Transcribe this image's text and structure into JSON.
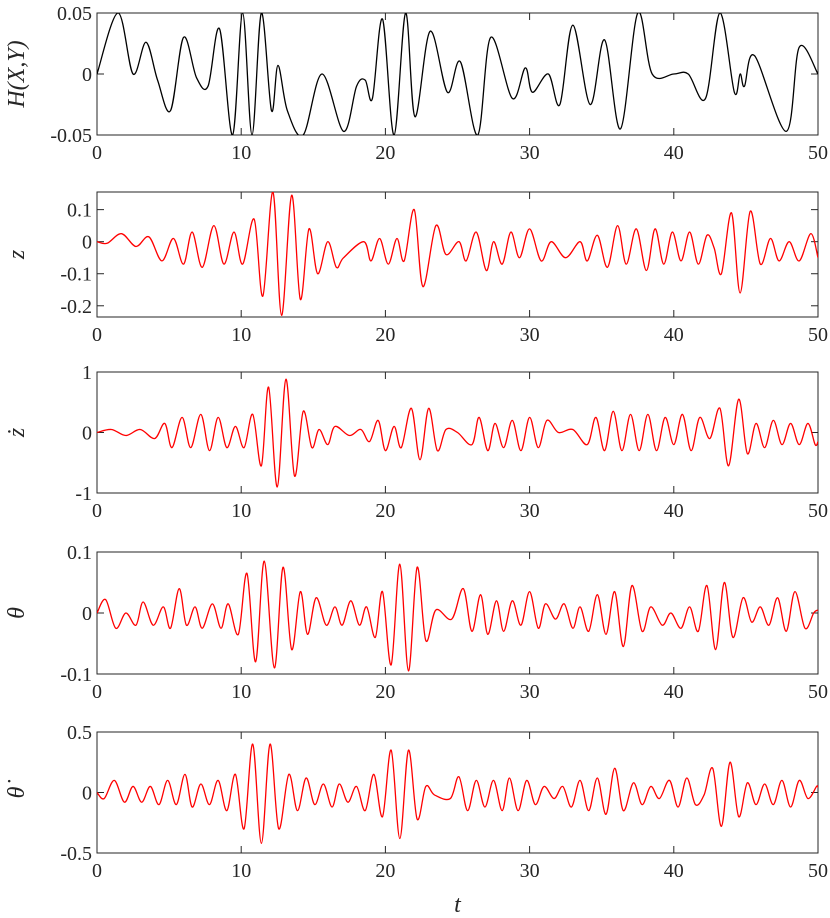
{
  "chart_data": [
    {
      "type": "line",
      "ylabel": "H(X,Y)",
      "color": "#000000",
      "xlim": [
        0,
        50
      ],
      "xticks": [
        0,
        10,
        20,
        30,
        40,
        50
      ],
      "ylim": [
        -0.05,
        0.05
      ],
      "yticks": [
        -0.05,
        0,
        0.05
      ],
      "x": [
        0,
        1.46,
        2.5,
        3.4,
        4.2,
        5.1,
        6.0,
        6.9,
        7.7,
        8.5,
        9.4,
        10.1,
        10.75,
        11.4,
        12.1,
        12.55,
        13.2,
        14.3,
        15.6,
        17.1,
        18.0,
        18.6,
        19.1,
        19.8,
        20.6,
        21.4,
        22.05,
        23.1,
        24.3,
        25.2,
        26.4,
        27.3,
        28.8,
        29.7,
        30.2,
        31.3,
        32.1,
        33.0,
        34.2,
        35.2,
        36.3,
        37.5,
        38.5,
        40.0,
        41.0,
        42.2,
        43.2,
        44.2,
        44.6,
        44.9,
        45.6,
        47.8,
        48.7,
        50
      ],
      "values": [
        0,
        0.05,
        0,
        0.026,
        -0.005,
        -0.03,
        0.03,
        -0.003,
        -0.01,
        0.037,
        -0.05,
        0.05,
        -0.05,
        0.05,
        -0.03,
        0.007,
        -0.03,
        -0.05,
        0,
        -0.047,
        -0.01,
        -0.005,
        -0.02,
        0.045,
        -0.05,
        0.05,
        -0.035,
        0.035,
        -0.015,
        0.01,
        -0.05,
        0.03,
        -0.02,
        0.005,
        -0.015,
        0,
        -0.025,
        0.04,
        -0.025,
        0.028,
        -0.045,
        0.05,
        0,
        0,
        0,
        -0.02,
        0.05,
        -0.015,
        0,
        -0.01,
        0.015,
        -0.047,
        0.022,
        0
      ]
    },
    {
      "type": "line",
      "ylabel": "z",
      "color": "#ff0000",
      "xlim": [
        0,
        50
      ],
      "xticks": [
        0,
        10,
        20,
        30,
        40,
        50
      ],
      "ylim": [
        -0.235,
        0.155
      ],
      "yticks": [
        -0.2,
        -0.1,
        0,
        0.1
      ],
      "x": [
        0,
        0.7,
        1.7,
        2.7,
        3.6,
        4.5,
        5.3,
        6,
        6.6,
        7.3,
        8.1,
        8.8,
        9.5,
        10.1,
        10.9,
        11.5,
        12.2,
        12.8,
        13.5,
        14.1,
        14.7,
        15.3,
        16,
        16.6,
        17.1,
        18.5,
        19,
        19.6,
        20.2,
        20.8,
        21.3,
        22,
        22.6,
        23.5,
        24.2,
        25.1,
        25.6,
        26.3,
        27,
        27.5,
        28.1,
        28.7,
        29.3,
        30,
        30.8,
        31.5,
        32.5,
        33.5,
        34,
        34.7,
        35.4,
        36.1,
        36.7,
        37.4,
        38.1,
        38.7,
        39.3,
        39.9,
        40.5,
        41.1,
        41.7,
        42.3,
        42.8,
        43.3,
        44,
        44.6,
        45.3,
        46,
        46.7,
        47.3,
        48,
        48.7,
        49.5,
        50
      ],
      "values": [
        0,
        -0.005,
        0.025,
        -0.015,
        0.015,
        -0.06,
        0.01,
        -0.07,
        0.03,
        -0.08,
        0.05,
        -0.07,
        0.03,
        -0.07,
        0.07,
        -0.17,
        0.155,
        -0.23,
        0.145,
        -0.18,
        0.04,
        -0.1,
        0,
        -0.08,
        -0.05,
        0,
        -0.06,
        0.01,
        -0.07,
        0.01,
        -0.06,
        0.1,
        -0.14,
        0.05,
        -0.04,
        0,
        -0.06,
        0.03,
        -0.09,
        0,
        -0.07,
        0.03,
        -0.05,
        0.04,
        -0.06,
        0,
        -0.05,
        0,
        -0.06,
        0.02,
        -0.08,
        0.05,
        -0.07,
        0.04,
        -0.09,
        0.04,
        -0.07,
        0.03,
        -0.06,
        0.03,
        -0.07,
        0.02,
        -0.02,
        -0.1,
        0.09,
        -0.16,
        0.095,
        -0.07,
        0.01,
        -0.06,
        0,
        -0.06,
        0.025,
        -0.05
      ]
    },
    {
      "type": "line",
      "ylabel": "ż",
      "color": "#ff0000",
      "xlim": [
        0,
        50
      ],
      "xticks": [
        0,
        10,
        20,
        30,
        40,
        50
      ],
      "ylim": [
        -1,
        1
      ],
      "yticks": [
        -1,
        0,
        1
      ],
      "x": [
        0,
        1,
        2,
        3,
        4,
        4.7,
        5.2,
        5.9,
        6.5,
        7.2,
        7.8,
        8.4,
        9,
        9.6,
        10.2,
        10.8,
        11.4,
        11.9,
        12.5,
        13.1,
        13.7,
        14.3,
        14.9,
        15.4,
        16,
        16.5,
        17.5,
        18.3,
        18.9,
        19.5,
        20,
        20.6,
        21.1,
        21.8,
        22.4,
        23,
        23.6,
        24.2,
        25,
        26,
        26.5,
        27.1,
        27.6,
        28.2,
        28.8,
        29.4,
        30,
        30.6,
        31.2,
        32,
        33,
        34,
        34.6,
        35.2,
        35.8,
        36.4,
        37,
        37.6,
        38.2,
        38.8,
        39.4,
        40,
        40.6,
        41.2,
        41.8,
        42.5,
        43.2,
        43.8,
        44.5,
        45.1,
        45.7,
        46.3,
        46.9,
        47.5,
        48.1,
        48.7,
        49.3,
        49.8,
        50
      ],
      "values": [
        0,
        0.05,
        -0.05,
        0.05,
        -0.1,
        0.15,
        -0.25,
        0.25,
        -0.25,
        0.3,
        -0.3,
        0.25,
        -0.25,
        0.1,
        -0.25,
        0.3,
        -0.55,
        0.75,
        -0.9,
        0.88,
        -0.72,
        0.35,
        -0.25,
        0.05,
        -0.2,
        0.1,
        -0.05,
        0.05,
        -0.15,
        0.2,
        -0.3,
        0.1,
        -0.25,
        0.4,
        -0.45,
        0.4,
        -0.3,
        0.05,
        0,
        -0.2,
        0.25,
        -0.3,
        0.15,
        -0.25,
        0.2,
        -0.3,
        0.25,
        -0.25,
        0.2,
        0,
        0.05,
        -0.2,
        0.25,
        -0.3,
        0.35,
        -0.3,
        0.3,
        -0.3,
        0.3,
        -0.3,
        0.25,
        -0.2,
        0.3,
        -0.3,
        0.25,
        -0.1,
        0.4,
        -0.55,
        0.55,
        -0.35,
        0.15,
        -0.25,
        0.2,
        -0.2,
        0.15,
        -0.2,
        0.15,
        -0.2,
        -0.15
      ]
    },
    {
      "type": "line",
      "ylabel": "θ",
      "color": "#ff0000",
      "xlim": [
        0,
        50
      ],
      "xticks": [
        0,
        10,
        20,
        30,
        40,
        50
      ],
      "ylim": [
        -0.1,
        0.1
      ],
      "yticks": [
        -0.1,
        0,
        0.1
      ],
      "x": [
        0,
        0.6,
        1.3,
        2,
        2.7,
        3.2,
        3.9,
        4.6,
        5.1,
        5.7,
        6.2,
        6.8,
        7.3,
        8,
        8.6,
        9.1,
        9.8,
        10.4,
        11,
        11.6,
        12.3,
        12.9,
        13.5,
        14.1,
        14.6,
        15.2,
        15.9,
        16.5,
        17,
        17.6,
        18.2,
        18.7,
        19.3,
        19.8,
        20.4,
        21,
        21.6,
        22.2,
        22.8,
        23.5,
        24.6,
        25.4,
        26,
        26.6,
        27.1,
        27.7,
        28.2,
        28.8,
        29.4,
        30,
        30.6,
        31.1,
        31.8,
        32.4,
        33,
        33.5,
        34.1,
        34.7,
        35.3,
        35.9,
        36.5,
        37.1,
        37.8,
        38.4,
        39.2,
        39.8,
        40.5,
        41.1,
        41.7,
        42.3,
        42.9,
        43.5,
        44.1,
        44.8,
        45.4,
        46,
        46.6,
        47.2,
        47.8,
        48.4,
        49.1,
        49.7,
        50
      ],
      "values": [
        0,
        0.022,
        -0.025,
        0,
        -0.02,
        0.018,
        -0.02,
        0.01,
        -0.025,
        0.04,
        -0.02,
        0.01,
        -0.025,
        0.015,
        -0.025,
        0.015,
        -0.035,
        0.065,
        -0.08,
        0.085,
        -0.09,
        0.075,
        -0.06,
        0.035,
        -0.035,
        0.025,
        -0.02,
        0.01,
        -0.02,
        0.02,
        -0.02,
        0.01,
        -0.04,
        0.035,
        -0.085,
        0.08,
        -0.095,
        0.075,
        -0.045,
        0.005,
        -0.01,
        0.04,
        -0.03,
        0.03,
        -0.035,
        0.02,
        -0.03,
        0.02,
        -0.02,
        0.035,
        -0.025,
        0.015,
        -0.01,
        0.015,
        -0.025,
        0.01,
        -0.03,
        0.03,
        -0.035,
        0.035,
        -0.055,
        0.045,
        -0.03,
        0.01,
        -0.02,
        0,
        -0.025,
        0.01,
        -0.03,
        0.045,
        -0.06,
        0.05,
        -0.04,
        0.025,
        -0.015,
        0.01,
        -0.02,
        0.025,
        -0.03,
        0.035,
        -0.025,
        0,
        0.005
      ]
    },
    {
      "type": "line",
      "ylabel": "θ̇",
      "xlabel": "t",
      "color": "#ff0000",
      "xlim": [
        0,
        50
      ],
      "xticks": [
        0,
        10,
        20,
        30,
        40,
        50
      ],
      "ylim": [
        -0.5,
        0.5
      ],
      "yticks": [
        -0.5,
        0,
        0.5
      ],
      "x": [
        0,
        0.5,
        1.2,
        1.9,
        2.5,
        3.1,
        3.7,
        4.3,
        4.9,
        5.5,
        6.1,
        6.6,
        7.2,
        7.8,
        8.4,
        9,
        9.6,
        10.2,
        10.8,
        11.4,
        12,
        12.6,
        13.3,
        13.9,
        14.5,
        15.1,
        15.7,
        16.3,
        16.8,
        17.4,
        18,
        18.6,
        19.2,
        19.8,
        20.4,
        21,
        21.6,
        22.2,
        22.8,
        23.4,
        24.5,
        25.1,
        25.7,
        26.3,
        26.9,
        27.5,
        28.1,
        28.6,
        29.2,
        29.8,
        30.4,
        31,
        31.7,
        32.3,
        32.9,
        33.5,
        34.1,
        34.7,
        35.3,
        35.9,
        36.5,
        37.2,
        37.8,
        38.4,
        39,
        39.7,
        40.3,
        40.9,
        41.5,
        42.1,
        42.7,
        43.3,
        43.9,
        44.5,
        45.1,
        45.7,
        46.3,
        46.9,
        47.5,
        48.1,
        48.7,
        49.3,
        49.9,
        50
      ],
      "values": [
        0,
        -0.05,
        0.1,
        -0.08,
        0.05,
        -0.08,
        0.05,
        -0.1,
        0.1,
        -0.1,
        0.15,
        -0.12,
        0.07,
        -0.1,
        0.1,
        -0.15,
        0.15,
        -0.3,
        0.4,
        -0.42,
        0.4,
        -0.3,
        0.15,
        -0.15,
        0.12,
        -0.1,
        0.07,
        -0.12,
        0.07,
        -0.08,
        0.05,
        -0.15,
        0.15,
        -0.2,
        0.35,
        -0.38,
        0.35,
        -0.22,
        0.05,
        -0.02,
        -0.05,
        0.13,
        -0.15,
        0.1,
        -0.12,
        0.1,
        -0.15,
        0.12,
        -0.15,
        0.1,
        -0.1,
        0.05,
        -0.05,
        0.05,
        -0.12,
        0.1,
        -0.15,
        0.12,
        -0.18,
        0.2,
        -0.15,
        0.08,
        -0.1,
        0.05,
        -0.05,
        0.1,
        -0.12,
        0.12,
        -0.1,
        -0.02,
        0.2,
        -0.28,
        0.25,
        -0.2,
        0.08,
        -0.1,
        0.07,
        -0.1,
        0.1,
        -0.12,
        0.1,
        -0.05,
        0.05,
        0.04
      ]
    }
  ]
}
